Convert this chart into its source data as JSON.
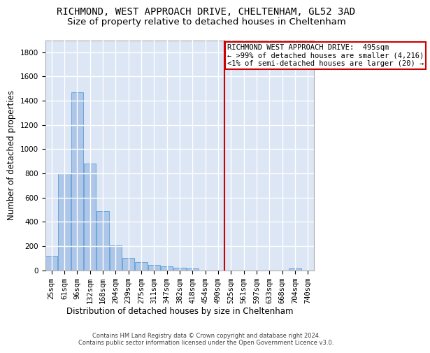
{
  "title": "RICHMOND, WEST APPROACH DRIVE, CHELTENHAM, GL52 3AD",
  "subtitle": "Size of property relative to detached houses in Cheltenham",
  "xlabel": "Distribution of detached houses by size in Cheltenham",
  "ylabel": "Number of detached properties",
  "footnote": "Contains HM Land Registry data © Crown copyright and database right 2024.\nContains public sector information licensed under the Open Government Licence v3.0.",
  "categories": [
    "25sqm",
    "61sqm",
    "96sqm",
    "132sqm",
    "168sqm",
    "204sqm",
    "239sqm",
    "275sqm",
    "311sqm",
    "347sqm",
    "382sqm",
    "418sqm",
    "454sqm",
    "490sqm",
    "525sqm",
    "561sqm",
    "597sqm",
    "633sqm",
    "668sqm",
    "704sqm",
    "740sqm"
  ],
  "bar_values": [
    120,
    800,
    1470,
    880,
    490,
    205,
    105,
    65,
    45,
    35,
    22,
    15,
    0,
    0,
    0,
    0,
    0,
    0,
    0,
    15,
    0
  ],
  "bar_color": "#aec6e8",
  "bar_edge_color": "#5a9fd4",
  "background_color": "#dce6f5",
  "grid_color": "#ffffff",
  "vline_color": "#cc0000",
  "annotation_text": "RICHMOND WEST APPROACH DRIVE:  495sqm\n← >99% of detached houses are smaller (4,216)\n<1% of semi-detached houses are larger (20) →",
  "annotation_box_color": "#cc0000",
  "ylim": [
    0,
    1900
  ],
  "yticks": [
    0,
    200,
    400,
    600,
    800,
    1000,
    1200,
    1400,
    1600,
    1800
  ],
  "title_fontsize": 10,
  "subtitle_fontsize": 9.5,
  "axis_label_fontsize": 8.5,
  "tick_fontsize": 7.5,
  "annotation_fontsize": 7.5,
  "footnote_fontsize": 6.0
}
